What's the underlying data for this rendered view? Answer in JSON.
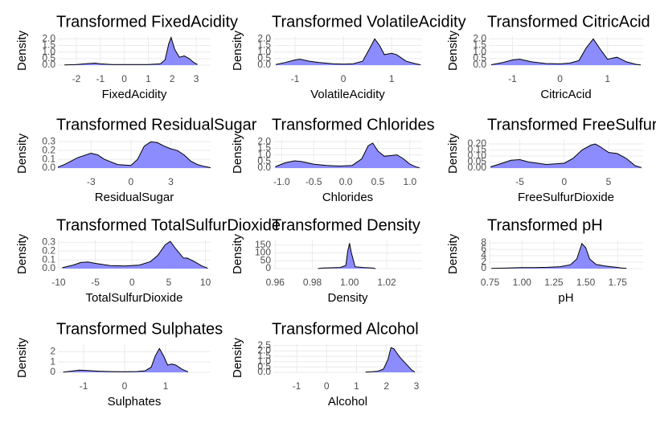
{
  "chart_data": [
    {
      "type": "area",
      "title": "Transformed FixedAcidity",
      "x_label": "FixedAcidity",
      "y_label": "Density",
      "color": "#8080ff",
      "grid": true,
      "x": [
        -2.5,
        -2,
        -1.5,
        -1.2,
        -1,
        -0.5,
        0,
        0.5,
        1,
        1.5,
        1.7,
        1.85,
        1.95,
        2.1,
        2.3,
        2.5,
        2.7,
        2.9,
        3.05
      ],
      "values": [
        0.02,
        0.05,
        0.12,
        0.15,
        0.1,
        0.05,
        0.04,
        0.04,
        0.05,
        0.1,
        0.4,
        1.6,
        2.1,
        1.2,
        0.6,
        0.7,
        0.5,
        0.2,
        0.05
      ],
      "xlim": [
        -2.77,
        3.6
      ],
      "ylim": [
        0,
        2.2
      ],
      "xticks": [
        -2,
        -1,
        0,
        1,
        2,
        3
      ],
      "yticks": [
        {
          "value": 0,
          "label": "0.0"
        },
        0.5,
        {
          "value": 1,
          "label": "1.0"
        },
        1.5,
        {
          "value": 2,
          "label": "2.0"
        }
      ]
    },
    {
      "type": "area",
      "title": "Transformed VolatileAcidity",
      "x_label": "VolatileAcidity",
      "y_label": "Density",
      "color": "#8080ff",
      "grid": true,
      "x": [
        -1.4,
        -1.2,
        -1,
        -0.9,
        -0.7,
        -0.5,
        -0.2,
        0,
        0.2,
        0.4,
        0.55,
        0.65,
        0.75,
        0.85,
        1,
        1.1,
        1.3,
        1.5,
        1.6
      ],
      "values": [
        0.05,
        0.2,
        0.4,
        0.45,
        0.3,
        0.2,
        0.1,
        0.08,
        0.1,
        0.3,
        1.3,
        2.0,
        1.5,
        0.8,
        0.9,
        0.8,
        0.3,
        0.1,
        0.03
      ],
      "xlim": [
        -1.45,
        1.63
      ],
      "ylim": [
        0,
        2.2
      ],
      "xticks": [
        -1,
        0,
        1
      ],
      "yticks": [
        {
          "value": 0,
          "label": "0.0"
        },
        0.5,
        {
          "value": 1,
          "label": "1.0"
        },
        1.5,
        {
          "value": 2,
          "label": "2.0"
        }
      ]
    },
    {
      "type": "area",
      "title": "Transformed CitricAcid",
      "x_label": "CitricAcid",
      "y_label": "Density",
      "color": "#8080ff",
      "grid": true,
      "x": [
        -1.45,
        -1.2,
        -1,
        -0.85,
        -0.6,
        -0.3,
        0,
        0.2,
        0.4,
        0.55,
        0.7,
        0.85,
        1,
        1.2,
        1.4,
        1.6,
        1.7
      ],
      "values": [
        0.03,
        0.2,
        0.4,
        0.45,
        0.25,
        0.12,
        0.1,
        0.15,
        0.35,
        1.3,
        2.0,
        1.2,
        0.45,
        0.6,
        0.25,
        0.06,
        0.02
      ],
      "xlim": [
        -1.5,
        1.75
      ],
      "ylim": [
        0,
        2.2
      ],
      "xticks": [
        -1,
        0,
        1
      ],
      "yticks": [
        {
          "value": 0,
          "label": "0.0"
        },
        0.5,
        {
          "value": 1,
          "label": "1.0"
        },
        1.5,
        {
          "value": 2,
          "label": "2.0"
        }
      ]
    },
    {
      "type": "area",
      "title": "Transformed ResidualSugar",
      "x_label": "ResidualSugar",
      "y_label": "Density",
      "color": "#8080ff",
      "grid": true,
      "x": [
        -5.5,
        -5,
        -4,
        -3,
        -2.5,
        -2,
        -1,
        0,
        0.5,
        1,
        1.5,
        2,
        2.5,
        3,
        3.5,
        4,
        4.5,
        5,
        5.5,
        6
      ],
      "values": [
        0.01,
        0.04,
        0.12,
        0.17,
        0.15,
        0.1,
        0.04,
        0.03,
        0.1,
        0.25,
        0.3,
        0.29,
        0.25,
        0.22,
        0.2,
        0.15,
        0.08,
        0.04,
        0.02,
        0.005
      ],
      "xlim": [
        -5.5,
        6
      ],
      "ylim": [
        0,
        0.33
      ],
      "xticks": [
        -3,
        0,
        3
      ],
      "yticks": [
        {
          "value": 0,
          "label": "0.0"
        },
        0.1,
        0.2,
        0.3
      ]
    },
    {
      "type": "area",
      "title": "Transformed Chlorides",
      "x_label": "Chlorides",
      "y_label": "Density",
      "color": "#8080ff",
      "grid": true,
      "x": [
        -1.1,
        -0.95,
        -0.8,
        -0.7,
        -0.5,
        -0.3,
        -0.1,
        0.1,
        0.25,
        0.35,
        0.42,
        0.5,
        0.6,
        0.7,
        0.8,
        0.9,
        1.0,
        1.1,
        1.15
      ],
      "values": [
        0.1,
        0.4,
        0.55,
        0.5,
        0.3,
        0.2,
        0.15,
        0.2,
        0.7,
        1.7,
        1.9,
        1.3,
        0.9,
        0.95,
        1.0,
        0.7,
        0.3,
        0.08,
        0.03
      ],
      "xlim": [
        -1.13,
        1.19
      ],
      "ylim": [
        0,
        2.2
      ],
      "xticks": [
        {
          "value": -1,
          "label": "-1.0"
        },
        -0.5,
        {
          "value": 0,
          "label": "0.0"
        },
        0.5,
        {
          "value": 1,
          "label": "1.0"
        }
      ],
      "yticks": [
        {
          "value": 0,
          "label": "0.0"
        },
        0.5,
        {
          "value": 1,
          "label": "1.0"
        },
        1.5,
        {
          "value": 2,
          "label": "2.0"
        }
      ]
    },
    {
      "type": "area",
      "title": "Transformed FreeSulfurDioxide",
      "x_label": "FreeSulfurDioxide",
      "y_label": "Density",
      "color": "#8080ff",
      "grid": true,
      "x": [
        -8.3,
        -7,
        -6,
        -5,
        -4,
        -2,
        0,
        1,
        2,
        3,
        3.5,
        4,
        5,
        6,
        7,
        8,
        8.7
      ],
      "values": [
        0.01,
        0.04,
        0.065,
        0.07,
        0.05,
        0.03,
        0.04,
        0.08,
        0.15,
        0.19,
        0.2,
        0.18,
        0.13,
        0.12,
        0.08,
        0.02,
        0.005
      ],
      "xlim": [
        -8.5,
        8.9
      ],
      "ylim": [
        0,
        0.24
      ],
      "xticks": [
        -5,
        0,
        5
      ],
      "yticks": [
        {
          "value": 0,
          "label": "0.00"
        },
        0.05,
        {
          "value": 0.1,
          "label": "0.10"
        },
        0.15,
        {
          "value": 0.2,
          "label": "0.20"
        }
      ]
    },
    {
      "type": "area",
      "title": "Transformed TotalSulfurDioxide",
      "x_label": "TotalSulfurDioxide",
      "y_label": "Density",
      "color": "#8080ff",
      "grid": true,
      "x": [
        -9.5,
        -8,
        -7,
        -6,
        -5,
        -3,
        -1,
        1,
        2.5,
        3.5,
        4.5,
        5.2,
        6,
        7,
        7.5,
        8.5,
        9.5,
        10.3
      ],
      "values": [
        0.01,
        0.04,
        0.07,
        0.075,
        0.06,
        0.035,
        0.03,
        0.04,
        0.08,
        0.15,
        0.27,
        0.31,
        0.22,
        0.12,
        0.12,
        0.08,
        0.03,
        0.005
      ],
      "xlim": [
        -10.1,
        10.7
      ],
      "ylim": [
        0,
        0.33
      ],
      "xticks": [
        -10,
        -5,
        0,
        5,
        10
      ],
      "yticks": [
        {
          "value": 0,
          "label": "0.0"
        },
        0.1,
        0.2,
        0.3
      ]
    },
    {
      "type": "area",
      "title": "Transformed Density",
      "x_label": "Density",
      "y_label": "Density",
      "color": "#8080ff",
      "grid": true,
      "x": [
        0.983,
        0.986,
        0.99,
        0.995,
        0.998,
        0.999,
        1.0,
        1.001,
        1.003,
        1.008,
        1.012,
        1.014
      ],
      "values": [
        0,
        4,
        5,
        7,
        20,
        110,
        162,
        100,
        12,
        6,
        4,
        0
      ],
      "xlim": [
        0.959,
        1.039
      ],
      "ylim": [
        0,
        185
      ],
      "xticks": [
        0.96,
        0.98,
        {
          "value": 1,
          "label": "1.00"
        },
        1.02
      ],
      "yticks": [
        0,
        50,
        100,
        150
      ]
    },
    {
      "type": "area",
      "title": "Transformed pH",
      "x_label": "pH",
      "y_label": "Density",
      "color": "#8080ff",
      "grid": true,
      "x": [
        0.76,
        0.9,
        1.0,
        1.1,
        1.2,
        1.3,
        1.38,
        1.43,
        1.47,
        1.5,
        1.53,
        1.58,
        1.65,
        1.72,
        1.78,
        1.82
      ],
      "values": [
        0.05,
        0.2,
        0.3,
        0.3,
        0.4,
        0.6,
        1.2,
        3,
        7.8,
        6.5,
        3,
        1.3,
        0.8,
        0.5,
        0.2,
        0.05
      ],
      "xlim": [
        0.74,
        1.95
      ],
      "ylim": [
        0,
        9
      ],
      "xticks": [
        0.75,
        {
          "value": 1,
          "label": "1.00"
        },
        1.25,
        {
          "value": 1.5,
          "label": "1.50"
        },
        1.75
      ],
      "yticks": [
        0,
        2,
        4,
        6,
        8
      ]
    },
    {
      "type": "area",
      "title": "Transformed Sulphates",
      "x_label": "Sulphates",
      "y_label": "Density",
      "color": "#8080ff",
      "grid": true,
      "x": [
        -1.5,
        -1.3,
        -1.1,
        -0.9,
        -0.6,
        -0.3,
        0,
        0.3,
        0.5,
        0.65,
        0.75,
        0.85,
        0.95,
        1.05,
        1.15,
        1.25,
        1.4,
        1.55
      ],
      "values": [
        0.02,
        0.12,
        0.22,
        0.18,
        0.1,
        0.07,
        0.06,
        0.08,
        0.15,
        0.5,
        1.6,
        2.3,
        1.6,
        0.7,
        0.8,
        0.7,
        0.3,
        0.05
      ],
      "xlim": [
        -1.63,
        2.1
      ],
      "ylim": [
        0,
        2.8
      ],
      "xticks": [
        -1,
        0,
        1
      ],
      "yticks": [
        0,
        1,
        2
      ]
    },
    {
      "type": "area",
      "title": "Transformed Alcohol",
      "x_label": "Alcohol",
      "y_label": "Density",
      "color": "#8080ff",
      "grid": true,
      "x": [
        1.3,
        1.5,
        1.7,
        1.9,
        2.05,
        2.15,
        2.25,
        2.35,
        2.45,
        2.55,
        2.65,
        2.75,
        2.85,
        2.95
      ],
      "values": [
        0.02,
        0.05,
        0.1,
        0.3,
        1.2,
        2.3,
        2.2,
        1.8,
        1.4,
        1.1,
        0.8,
        0.5,
        0.2,
        0.04
      ],
      "xlim": [
        -1.78,
        3.19
      ],
      "ylim": [
        0,
        2.7
      ],
      "xticks": [
        -1,
        0,
        1,
        2,
        3
      ],
      "yticks": [
        {
          "value": 0,
          "label": "0.0"
        },
        0.5,
        {
          "value": 1,
          "label": "1.0"
        },
        1.5,
        {
          "value": 2,
          "label": "2.0"
        },
        2.5
      ]
    }
  ]
}
